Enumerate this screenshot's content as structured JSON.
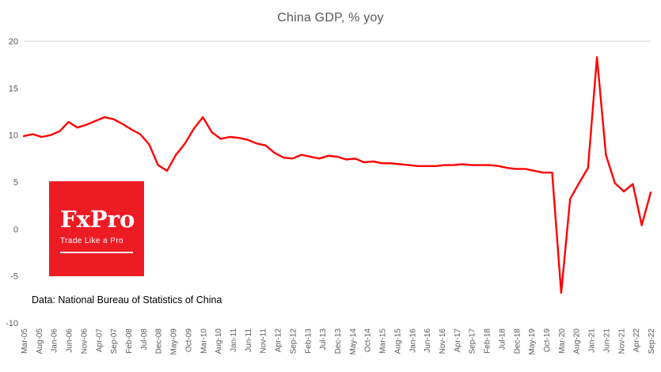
{
  "chart": {
    "title": "China GDP, % yoy",
    "source_note": "Data: National Bureau of Statistics of China",
    "text_color": "#595959",
    "background": "#ffffff"
  },
  "logo": {
    "text": "FxPro",
    "tagline": "Trade Like a Pro",
    "color": "#ed1c24"
  },
  "chart_data": {
    "type": "line",
    "title": "China GDP, % yoy",
    "series_name": "China GDP, % yoy",
    "line_color": "#ff0000",
    "grid_color": "#d9d9d9",
    "legend": "none",
    "ylim": [
      -10,
      20
    ],
    "yticks": [
      20,
      15,
      10,
      5,
      0,
      -5,
      -10
    ],
    "xtick_labels": [
      "Mar-05",
      "Aug-05",
      "Jan-06",
      "Jun-06",
      "Nov-06",
      "Apr-07",
      "Sep-07",
      "Feb-08",
      "Jul-08",
      "Dec-08",
      "May-09",
      "Oct-09",
      "Mar-10",
      "Aug-10",
      "Jan-11",
      "Jun-11",
      "Nov-11",
      "Apr-12",
      "Sep-12",
      "Feb-13",
      "Jul-13",
      "Dec-13",
      "May-14",
      "Oct-14",
      "Mar-15",
      "Aug-15",
      "Jan-16",
      "Jun-16",
      "Nov-16",
      "Apr-17",
      "Sep-17",
      "Feb-18",
      "Jul-18",
      "Dec-18",
      "May-19",
      "Oct-19",
      "Mar-20",
      "Aug-20",
      "Jan-21",
      "Jun-21",
      "Nov-21",
      "Apr-22",
      "Sep-22"
    ],
    "x": [
      "Mar-05",
      "Jun-05",
      "Sep-05",
      "Dec-05",
      "Mar-06",
      "Jun-06",
      "Sep-06",
      "Dec-06",
      "Mar-07",
      "Jun-07",
      "Sep-07",
      "Dec-07",
      "Mar-08",
      "Jun-08",
      "Sep-08",
      "Dec-08",
      "Mar-09",
      "Jun-09",
      "Sep-09",
      "Dec-09",
      "Mar-10",
      "Jun-10",
      "Sep-10",
      "Dec-10",
      "Mar-11",
      "Jun-11",
      "Sep-11",
      "Dec-11",
      "Mar-12",
      "Jun-12",
      "Sep-12",
      "Dec-12",
      "Mar-13",
      "Jun-13",
      "Sep-13",
      "Dec-13",
      "Mar-14",
      "Jun-14",
      "Sep-14",
      "Dec-14",
      "Mar-15",
      "Jun-15",
      "Sep-15",
      "Dec-15",
      "Mar-16",
      "Jun-16",
      "Sep-16",
      "Dec-16",
      "Mar-17",
      "Jun-17",
      "Sep-17",
      "Dec-17",
      "Mar-18",
      "Jun-18",
      "Sep-18",
      "Dec-18",
      "Mar-19",
      "Jun-19",
      "Sep-19",
      "Dec-19",
      "Mar-20",
      "Jun-20",
      "Sep-20",
      "Dec-20",
      "Mar-21",
      "Jun-21",
      "Sep-21",
      "Dec-21",
      "Mar-22",
      "Jun-22",
      "Sep-22"
    ],
    "values": [
      9.9,
      10.1,
      9.8,
      10.0,
      10.4,
      11.4,
      10.8,
      11.1,
      11.5,
      11.9,
      11.7,
      11.2,
      10.6,
      10.1,
      9.0,
      6.8,
      6.2,
      7.9,
      9.1,
      10.7,
      11.9,
      10.3,
      9.6,
      9.8,
      9.7,
      9.5,
      9.1,
      8.9,
      8.1,
      7.6,
      7.5,
      7.9,
      7.7,
      7.5,
      7.8,
      7.7,
      7.4,
      7.5,
      7.1,
      7.2,
      7.0,
      7.0,
      6.9,
      6.8,
      6.7,
      6.7,
      6.7,
      6.8,
      6.8,
      6.9,
      6.8,
      6.8,
      6.8,
      6.7,
      6.5,
      6.4,
      6.4,
      6.2,
      6.0,
      6.0,
      -6.8,
      3.2,
      4.9,
      6.5,
      18.3,
      7.9,
      4.9,
      4.0,
      4.8,
      0.4,
      3.9
    ]
  }
}
